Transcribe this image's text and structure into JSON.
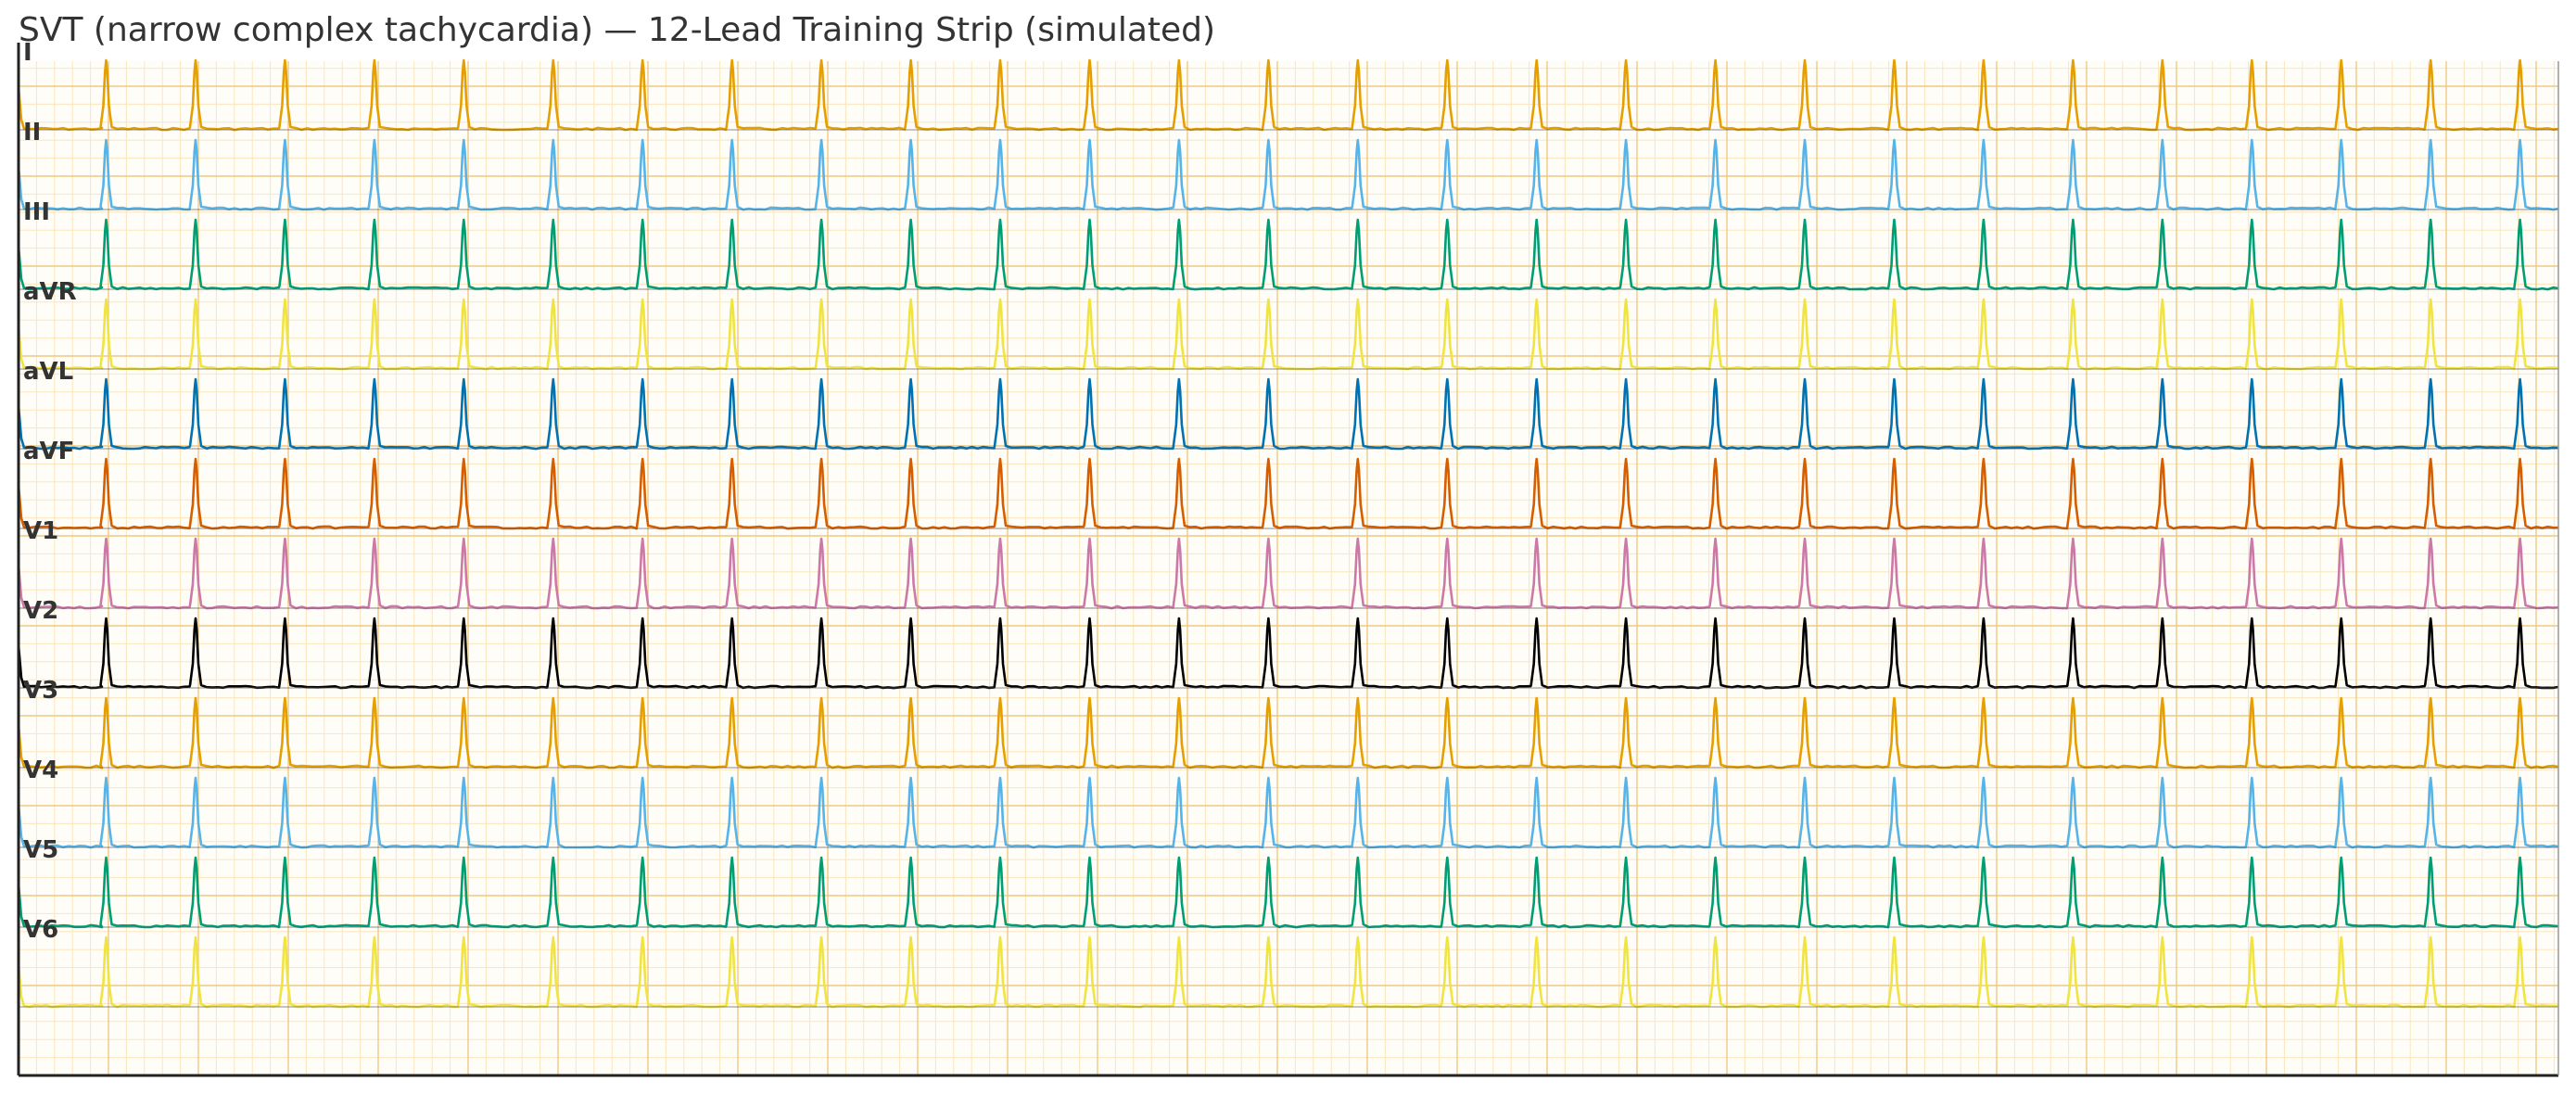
{
  "chart_data": {
    "type": "line",
    "title": "SVT (narrow complex tachycardia) — 12-Lead Training Strip (simulated)",
    "xlabel": "",
    "ylabel": "",
    "grid": true,
    "beats_per_strip": 28,
    "beat_interval_fraction": 0.0352,
    "first_beat_fraction": 0.0345,
    "colors": {
      "grid_minor": "#fbe6bd",
      "grid_major": "#efc884",
      "background": "#fffdf7",
      "axis": "#222222"
    },
    "series": [
      {
        "name": "I",
        "color": "#E69F00"
      },
      {
        "name": "II",
        "color": "#56B4E9"
      },
      {
        "name": "III",
        "color": "#009E73"
      },
      {
        "name": "aVR",
        "color": "#F0E442"
      },
      {
        "name": "aVL",
        "color": "#0072B2"
      },
      {
        "name": "aVF",
        "color": "#D55E00"
      },
      {
        "name": "V1",
        "color": "#CC79A7"
      },
      {
        "name": "V2",
        "color": "#000000"
      },
      {
        "name": "V3",
        "color": "#E69F00"
      },
      {
        "name": "V4",
        "color": "#56B4E9"
      },
      {
        "name": "V5",
        "color": "#009E73"
      },
      {
        "name": "V6",
        "color": "#F0E442"
      }
    ]
  }
}
